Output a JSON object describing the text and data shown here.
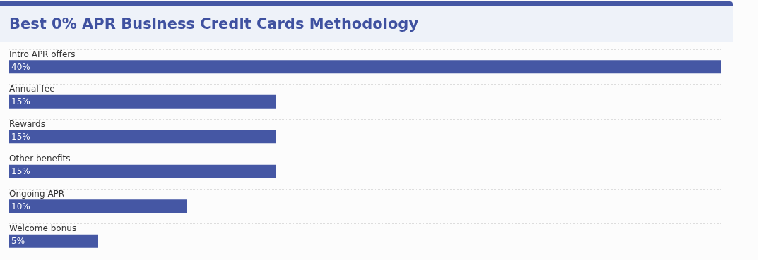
{
  "chart_data": {
    "type": "bar",
    "orientation": "horizontal",
    "title": "Best 0% APR Business Credit Cards Methodology",
    "categories": [
      "Intro APR offers",
      "Annual fee",
      "Rewards",
      "Other benefits",
      "Ongoing APR",
      "Welcome bonus"
    ],
    "values": [
      40,
      15,
      15,
      15,
      10,
      5
    ],
    "value_labels": [
      "40%",
      "15%",
      "15%",
      "15%",
      "10%",
      "5%"
    ],
    "color": "#4557a4",
    "grid": "y"
  }
}
